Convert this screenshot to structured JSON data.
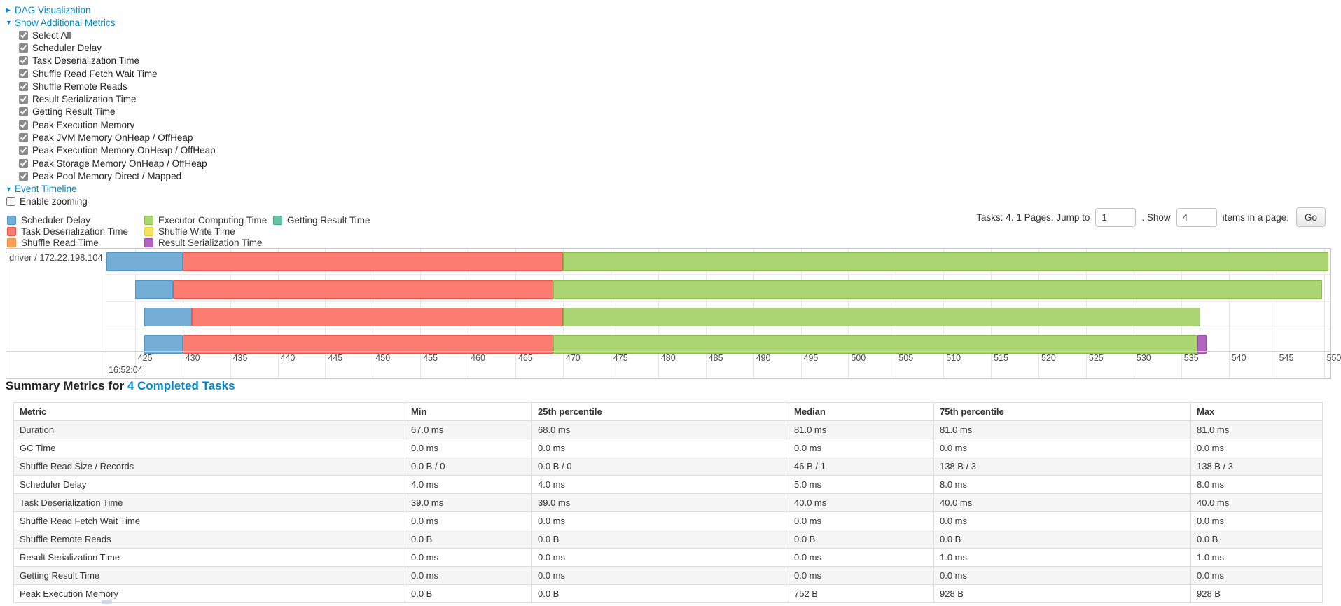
{
  "controls": {
    "dag": {
      "arrow": "▶",
      "label": "DAG Visualization"
    },
    "metrics_toggle": {
      "arrow": "▼",
      "label": "Show Additional Metrics"
    },
    "metric_checkboxes": [
      {
        "label": "Select All",
        "checked": true
      },
      {
        "label": "Scheduler Delay",
        "checked": true
      },
      {
        "label": "Task Deserialization Time",
        "checked": true
      },
      {
        "label": "Shuffle Read Fetch Wait Time",
        "checked": true
      },
      {
        "label": "Shuffle Remote Reads",
        "checked": true
      },
      {
        "label": "Result Serialization Time",
        "checked": true
      },
      {
        "label": "Getting Result Time",
        "checked": true
      },
      {
        "label": "Peak Execution Memory",
        "checked": true
      },
      {
        "label": "Peak JVM Memory OnHeap / OffHeap",
        "checked": true
      },
      {
        "label": "Peak Execution Memory OnHeap / OffHeap",
        "checked": true
      },
      {
        "label": "Peak Storage Memory OnHeap / OffHeap",
        "checked": true
      },
      {
        "label": "Peak Pool Memory Direct / Mapped",
        "checked": true
      }
    ],
    "event_timeline": {
      "arrow": "▼",
      "label": "Event Timeline"
    },
    "enable_zooming": {
      "label": "Enable zooming",
      "checked": false
    }
  },
  "legend": {
    "columns": [
      {
        "items": [
          {
            "label": "Scheduler Delay",
            "color": "#74add5",
            "border": "#4e96c8"
          },
          {
            "label": "Task Deserialization Time",
            "color": "#fb7d72",
            "border": "#e9574c"
          },
          {
            "label": "Shuffle Read Time",
            "color": "#f7a35c",
            "border": "#ef8d36"
          }
        ]
      },
      {
        "items": [
          {
            "label": "Executor Computing Time",
            "color": "#abd573",
            "border": "#87bc49"
          },
          {
            "label": "Shuffle Write Time",
            "color": "#f5e462",
            "border": "#e0ce32"
          },
          {
            "label": "Result Serialization Time",
            "color": "#b165bf",
            "border": "#9a4bad"
          }
        ]
      },
      {
        "items": [
          {
            "label": "Getting Result Time",
            "color": "#68c2a3",
            "border": "#41ab87"
          }
        ]
      }
    ]
  },
  "pagination": {
    "prefix": "Tasks: 4. 1 Pages. Jump to",
    "jump_value": "1",
    "mid": ". Show",
    "show_value": "4",
    "suffix": "items in a page.",
    "go_label": "Go"
  },
  "chart_data": {
    "type": "timeline",
    "group_label": "driver / 172.22.198.104",
    "axis": {
      "domain_ms": [
        422,
        550.7
      ],
      "tick_start": 425,
      "tick_end": 550,
      "tick_step": 5,
      "major_label": "16:52:04"
    },
    "colors": {
      "scheduler-delay": {
        "fill": "#74add5",
        "border": "#4e96c8"
      },
      "task-deserialization": {
        "fill": "#fb7d72",
        "border": "#e9574c"
      },
      "executor-computing": {
        "fill": "#abd573",
        "border": "#87bc49"
      },
      "result-serialization": {
        "fill": "#b165bf",
        "border": "#9a4bad"
      }
    },
    "tasks": [
      {
        "segments": [
          {
            "type": "scheduler-delay",
            "start": 422.0,
            "end": 430.0
          },
          {
            "type": "task-deserialization",
            "start": 430.0,
            "end": 470.0
          },
          {
            "type": "executor-computing",
            "start": 470.0,
            "end": 550.5
          }
        ]
      },
      {
        "segments": [
          {
            "type": "scheduler-delay",
            "start": 425.0,
            "end": 429.0
          },
          {
            "type": "task-deserialization",
            "start": 429.0,
            "end": 469.0
          },
          {
            "type": "executor-computing",
            "start": 469.0,
            "end": 549.8
          }
        ]
      },
      {
        "segments": [
          {
            "type": "scheduler-delay",
            "start": 426.0,
            "end": 431.0
          },
          {
            "type": "task-deserialization",
            "start": 431.0,
            "end": 470.0
          },
          {
            "type": "executor-computing",
            "start": 470.0,
            "end": 537.0
          }
        ]
      },
      {
        "segments": [
          {
            "type": "scheduler-delay",
            "start": 426.0,
            "end": 430.0
          },
          {
            "type": "task-deserialization",
            "start": 430.0,
            "end": 469.0
          },
          {
            "type": "executor-computing",
            "start": 469.0,
            "end": 536.7
          },
          {
            "type": "result-serialization",
            "start": 536.7,
            "end": 537.7
          }
        ]
      }
    ]
  },
  "summary": {
    "title_prefix": "Summary Metrics for ",
    "title_link": "4 Completed Tasks",
    "columns": [
      "Metric",
      "Min",
      "25th percentile",
      "Median",
      "75th percentile",
      "Max"
    ],
    "rows": [
      {
        "metric": "Duration",
        "values": [
          "67.0 ms",
          "68.0 ms",
          "81.0 ms",
          "81.0 ms",
          "81.0 ms"
        ]
      },
      {
        "metric": "GC Time",
        "values": [
          "0.0 ms",
          "0.0 ms",
          "0.0 ms",
          "0.0 ms",
          "0.0 ms"
        ]
      },
      {
        "metric": "Shuffle Read Size / Records",
        "values": [
          "0.0 B / 0",
          "0.0 B / 0",
          "46 B / 1",
          "138 B / 3",
          "138 B / 3"
        ]
      },
      {
        "metric": "Scheduler Delay",
        "values": [
          "4.0 ms",
          "4.0 ms",
          "5.0 ms",
          "8.0 ms",
          "8.0 ms"
        ]
      },
      {
        "metric": "Task Deserialization Time",
        "values": [
          "39.0 ms",
          "39.0 ms",
          "40.0 ms",
          "40.0 ms",
          "40.0 ms"
        ]
      },
      {
        "metric": "Shuffle Read Fetch Wait Time",
        "values": [
          "0.0 ms",
          "0.0 ms",
          "0.0 ms",
          "0.0 ms",
          "0.0 ms"
        ]
      },
      {
        "metric": "Shuffle Remote Reads",
        "values": [
          "0.0 B",
          "0.0 B",
          "0.0 B",
          "0.0 B",
          "0.0 B"
        ]
      },
      {
        "metric": "Result Serialization Time",
        "values": [
          "0.0 ms",
          "0.0 ms",
          "0.0 ms",
          "1.0 ms",
          "1.0 ms"
        ]
      },
      {
        "metric": "Getting Result Time",
        "values": [
          "0.0 ms",
          "0.0 ms",
          "0.0 ms",
          "0.0 ms",
          "0.0 ms"
        ]
      },
      {
        "metric": "Peak Execution Memory",
        "values": [
          "0.0 B",
          "0.0 B",
          "752 B",
          "928 B",
          "928 B"
        ]
      }
    ]
  }
}
